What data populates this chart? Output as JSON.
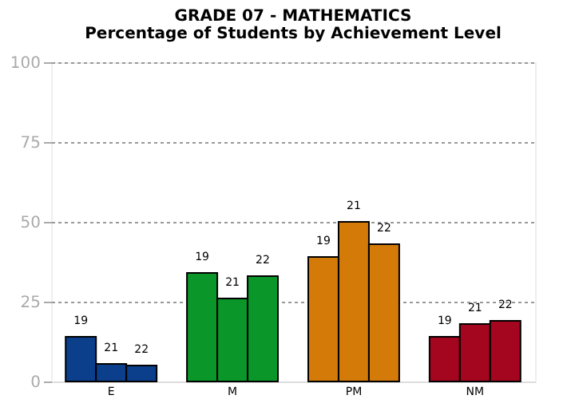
{
  "chart_data": {
    "type": "bar",
    "title": "GRADE 07 - MATHEMATICS",
    "subtitle": "Percentage of Students by Achievement Level",
    "categories": [
      "E",
      "M",
      "PM",
      "NM"
    ],
    "series": [
      {
        "name": "19",
        "colors": [
          "#0b3f8c",
          "#0a9628",
          "#d47a08",
          "#a5061f"
        ],
        "values": [
          14,
          34,
          39,
          14
        ]
      },
      {
        "name": "21",
        "colors": [
          "#0b3f8c",
          "#0a9628",
          "#d47a08",
          "#a5061f"
        ],
        "values": [
          5.5,
          26,
          50,
          18
        ]
      },
      {
        "name": "22",
        "colors": [
          "#0b3f8c",
          "#0a9628",
          "#d47a08",
          "#a5061f"
        ],
        "values": [
          5,
          33,
          43,
          19
        ]
      }
    ],
    "ylim": [
      0,
      100
    ],
    "yticks": [
      0,
      25,
      50,
      75,
      100
    ],
    "grid": "y"
  }
}
